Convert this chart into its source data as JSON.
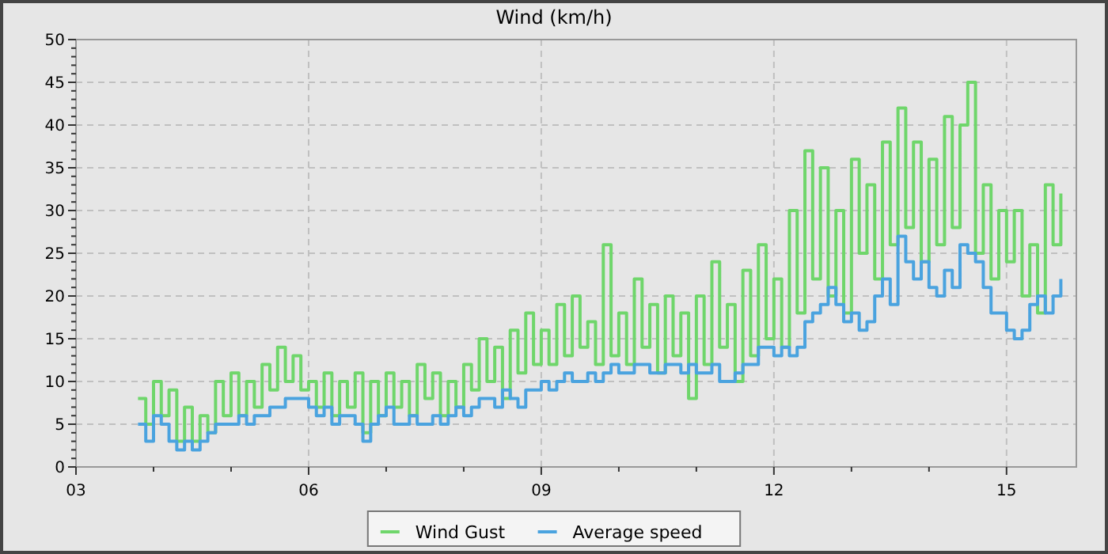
{
  "chart_data": {
    "type": "step",
    "title": "Wind (km/h)",
    "xlim": [
      3,
      15.9
    ],
    "xticks": [
      {
        "value": 3,
        "label": "03"
      },
      {
        "value": 4,
        "label": null
      },
      {
        "value": 5,
        "label": null
      },
      {
        "value": 6,
        "label": "06"
      },
      {
        "value": 7,
        "label": null
      },
      {
        "value": 8,
        "label": null
      },
      {
        "value": 9,
        "label": "09"
      },
      {
        "value": 10,
        "label": null
      },
      {
        "value": 11,
        "label": null
      },
      {
        "value": 12,
        "label": "12"
      },
      {
        "value": 13,
        "label": null
      },
      {
        "value": 14,
        "label": null
      },
      {
        "value": 15,
        "label": "15"
      }
    ],
    "ylim": [
      0,
      50
    ],
    "yticks": [
      0,
      {
        "value": 1,
        "label": null
      },
      {
        "value": 2,
        "label": null
      },
      {
        "value": 3,
        "label": null
      },
      {
        "value": 4,
        "label": null
      },
      5,
      {
        "value": 6,
        "label": null
      },
      {
        "value": 7,
        "label": null
      },
      {
        "value": 8,
        "label": null
      },
      {
        "value": 9,
        "label": null
      },
      10,
      {
        "value": 11,
        "label": null
      },
      {
        "value": 12,
        "label": null
      },
      {
        "value": 13,
        "label": null
      },
      {
        "value": 14,
        "label": null
      },
      15,
      {
        "value": 16,
        "label": null
      },
      {
        "value": 17,
        "label": null
      },
      {
        "value": 18,
        "label": null
      },
      {
        "value": 19,
        "label": null
      },
      20,
      {
        "value": 21,
        "label": null
      },
      {
        "value": 22,
        "label": null
      },
      {
        "value": 23,
        "label": null
      },
      {
        "value": 24,
        "label": null
      },
      25,
      {
        "value": 26,
        "label": null
      },
      {
        "value": 27,
        "label": null
      },
      {
        "value": 28,
        "label": null
      },
      {
        "value": 29,
        "label": null
      },
      30,
      {
        "value": 31,
        "label": null
      },
      {
        "value": 32,
        "label": null
      },
      {
        "value": 33,
        "label": null
      },
      {
        "value": 34,
        "label": null
      },
      35,
      {
        "value": 36,
        "label": null
      },
      {
        "value": 37,
        "label": null
      },
      {
        "value": 38,
        "label": null
      },
      {
        "value": 39,
        "label": null
      },
      40,
      {
        "value": 41,
        "label": null
      },
      {
        "value": 42,
        "label": null
      },
      {
        "value": 43,
        "label": null
      },
      {
        "value": 44,
        "label": null
      },
      45,
      {
        "value": 46,
        "label": null
      },
      {
        "value": 47,
        "label": null
      },
      {
        "value": 48,
        "label": null
      },
      {
        "value": 49,
        "label": null
      },
      50
    ],
    "grid": true,
    "legend": "bottom",
    "line_style": "solid",
    "x": [
      3.8,
      3.9,
      4.0,
      4.1,
      4.2,
      4.3,
      4.4,
      4.5,
      4.6,
      4.7,
      4.8,
      4.9,
      5.0,
      5.1,
      5.2,
      5.3,
      5.4,
      5.5,
      5.6,
      5.7,
      5.8,
      5.9,
      6.0,
      6.1,
      6.2,
      6.3,
      6.4,
      6.5,
      6.6,
      6.7,
      6.8,
      6.9,
      7.0,
      7.1,
      7.2,
      7.3,
      7.4,
      7.5,
      7.6,
      7.7,
      7.8,
      7.9,
      8.0,
      8.1,
      8.2,
      8.3,
      8.4,
      8.5,
      8.6,
      8.7,
      8.8,
      8.9,
      9.0,
      9.1,
      9.2,
      9.3,
      9.4,
      9.5,
      9.6,
      9.7,
      9.8,
      9.9,
      10.0,
      10.1,
      10.2,
      10.3,
      10.4,
      10.5,
      10.6,
      10.7,
      10.8,
      10.9,
      11.0,
      11.1,
      11.2,
      11.3,
      11.4,
      11.5,
      11.6,
      11.7,
      11.8,
      11.9,
      12.0,
      12.1,
      12.2,
      12.3,
      12.4,
      12.5,
      12.6,
      12.7,
      12.8,
      12.9,
      13.0,
      13.1,
      13.2,
      13.3,
      13.4,
      13.5,
      13.6,
      13.7,
      13.8,
      13.9,
      14.0,
      14.1,
      14.2,
      14.3,
      14.4,
      14.5,
      14.6,
      14.7,
      14.8,
      14.9,
      15.0,
      15.1,
      15.2,
      15.3,
      15.4,
      15.5,
      15.6,
      15.7
    ],
    "series": [
      {
        "name": "Wind Gust",
        "color": "#6fd66b",
        "values": [
          8,
          5,
          10,
          6,
          9,
          3,
          7,
          3,
          6,
          4,
          10,
          6,
          11,
          6,
          10,
          7,
          12,
          9,
          14,
          10,
          13,
          9,
          10,
          7,
          11,
          6,
          10,
          7,
          11,
          4,
          10,
          6,
          11,
          7,
          10,
          6,
          12,
          8,
          11,
          6,
          10,
          7,
          12,
          9,
          15,
          10,
          14,
          8,
          16,
          11,
          18,
          12,
          16,
          12,
          19,
          13,
          20,
          14,
          17,
          12,
          26,
          13,
          18,
          12,
          22,
          14,
          19,
          11,
          20,
          13,
          18,
          8,
          20,
          12,
          24,
          14,
          19,
          10,
          23,
          13,
          26,
          15,
          22,
          14,
          30,
          18,
          37,
          22,
          35,
          20,
          30,
          18,
          36,
          25,
          33,
          22,
          38,
          26,
          42,
          28,
          38,
          24,
          36,
          26,
          41,
          28,
          40,
          45,
          25,
          33,
          22,
          30,
          24,
          30,
          20,
          26,
          18,
          33,
          26,
          32
        ]
      },
      {
        "name": "Average speed",
        "color": "#4aa3df",
        "values": [
          5,
          3,
          6,
          5,
          3,
          2,
          3,
          2,
          3,
          4,
          5,
          5,
          5,
          6,
          5,
          6,
          6,
          7,
          7,
          8,
          8,
          8,
          7,
          6,
          7,
          5,
          6,
          6,
          5,
          3,
          5,
          6,
          7,
          5,
          5,
          6,
          5,
          5,
          6,
          5,
          6,
          7,
          6,
          7,
          8,
          8,
          7,
          9,
          8,
          7,
          9,
          9,
          10,
          9,
          10,
          11,
          10,
          10,
          11,
          10,
          11,
          12,
          11,
          11,
          12,
          12,
          11,
          11,
          12,
          12,
          11,
          12,
          11,
          11,
          12,
          10,
          10,
          11,
          12,
          12,
          14,
          14,
          13,
          14,
          13,
          14,
          17,
          18,
          19,
          21,
          19,
          17,
          18,
          16,
          17,
          20,
          22,
          19,
          27,
          24,
          22,
          24,
          21,
          20,
          23,
          21,
          26,
          25,
          24,
          21,
          18,
          18,
          16,
          15,
          16,
          19,
          20,
          18,
          20,
          22
        ]
      }
    ]
  }
}
